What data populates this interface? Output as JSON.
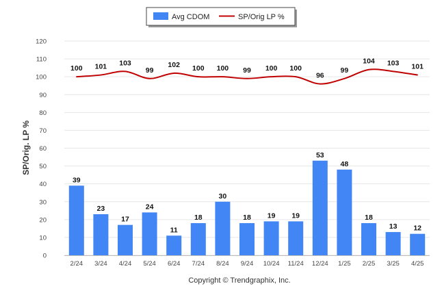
{
  "chart_data": {
    "type": "bar",
    "categories": [
      "2/24",
      "3/24",
      "4/24",
      "5/24",
      "6/24",
      "7/24",
      "8/24",
      "9/24",
      "10/24",
      "11/24",
      "12/24",
      "1/25",
      "2/25",
      "3/25",
      "4/25"
    ],
    "series": [
      {
        "name": "Avg CDOM",
        "kind": "bar",
        "color": "#4285f4",
        "values": [
          39,
          23,
          17,
          24,
          11,
          18,
          30,
          18,
          19,
          19,
          53,
          48,
          18,
          13,
          12
        ]
      },
      {
        "name": "SP/Orig LP %",
        "kind": "line",
        "color": "#c00000",
        "values": [
          100,
          101,
          103,
          99,
          102,
          100,
          100,
          99,
          100,
          100,
          96,
          99,
          104,
          103,
          101
        ]
      }
    ],
    "ylabel": "SP/Orig. LP %",
    "ylim": [
      0,
      120
    ],
    "yticks": [
      0,
      10,
      20,
      30,
      40,
      50,
      60,
      70,
      80,
      90,
      100,
      110,
      120
    ],
    "grid": true,
    "legend": "top-center",
    "footer": "Copyright © Trendgraphix, Inc."
  }
}
